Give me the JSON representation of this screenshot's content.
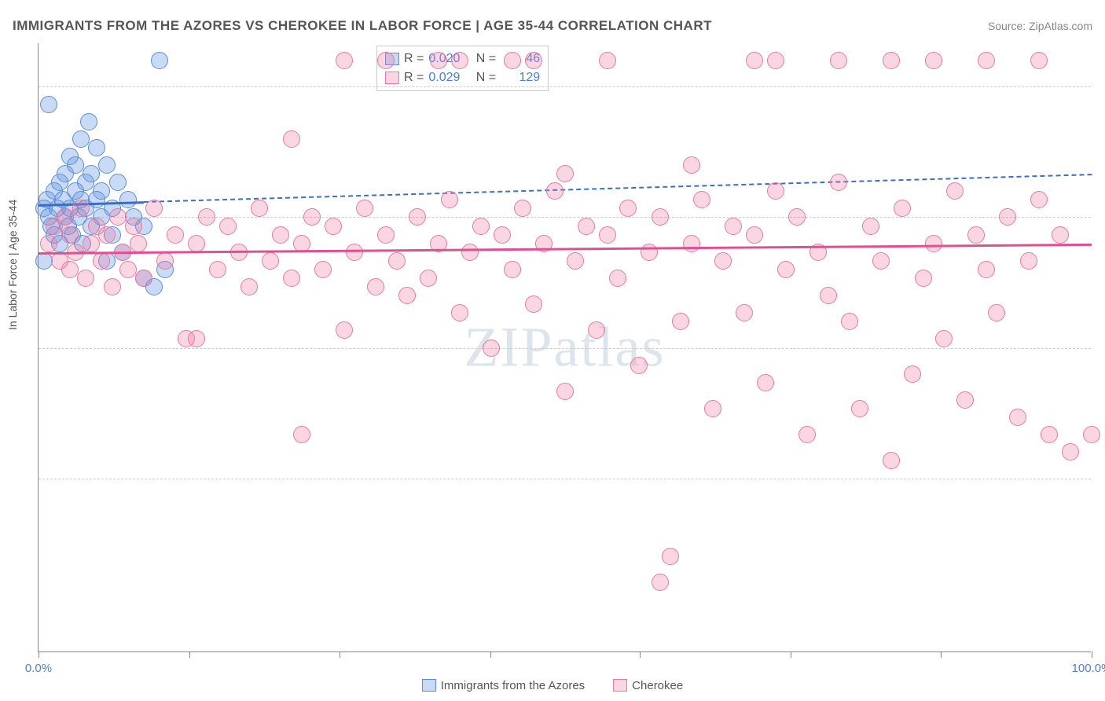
{
  "title": "IMMIGRANTS FROM THE AZORES VS CHEROKEE IN LABOR FORCE | AGE 35-44 CORRELATION CHART",
  "source": "Source: ZipAtlas.com",
  "ylabel": "In Labor Force | Age 35-44",
  "watermark": "ZIPatlas",
  "chart": {
    "type": "scatter",
    "xlim": [
      0,
      100
    ],
    "ylim": [
      35,
      105
    ],
    "yticks": [
      55.0,
      70.0,
      85.0,
      100.0
    ],
    "xticks_minor": [
      0,
      14.3,
      28.6,
      42.9,
      57.1,
      71.4,
      85.7,
      100
    ],
    "xtick_labels": {
      "0": "0.0%",
      "100": "100.0%"
    },
    "grid_color": "#cccccc",
    "background_color": "#ffffff",
    "axis_color": "#888888",
    "tick_label_color": "#4a7fd6",
    "point_radius": 11,
    "series": [
      {
        "name": "Immigrants from the Azores",
        "fill": "rgba(100,150,230,0.35)",
        "stroke": "#5b8fd6",
        "trend": {
          "y_at_x0": 86.5,
          "y_at_x100": 90.0,
          "solid_until_x": 10,
          "color": "#3b6fc6"
        },
        "R": "0.020",
        "N": "46",
        "points": [
          [
            0.5,
            86
          ],
          [
            0.8,
            87
          ],
          [
            1.0,
            85
          ],
          [
            1.2,
            84
          ],
          [
            1.5,
            88
          ],
          [
            1.5,
            83
          ],
          [
            1.8,
            86
          ],
          [
            2.0,
            89
          ],
          [
            2.0,
            82
          ],
          [
            2.3,
            87
          ],
          [
            2.5,
            90
          ],
          [
            2.5,
            85
          ],
          [
            2.8,
            84
          ],
          [
            3.0,
            92
          ],
          [
            3.0,
            86
          ],
          [
            3.2,
            83
          ],
          [
            3.5,
            88
          ],
          [
            3.5,
            91
          ],
          [
            3.8,
            85
          ],
          [
            4.0,
            87
          ],
          [
            4.0,
            94
          ],
          [
            4.2,
            82
          ],
          [
            4.5,
            89
          ],
          [
            4.5,
            86
          ],
          [
            4.8,
            96
          ],
          [
            5.0,
            84
          ],
          [
            5.0,
            90
          ],
          [
            5.5,
            87
          ],
          [
            5.5,
            93
          ],
          [
            6.0,
            85
          ],
          [
            6.0,
            88
          ],
          [
            6.5,
            80
          ],
          [
            6.5,
            91
          ],
          [
            7.0,
            86
          ],
          [
            7.0,
            83
          ],
          [
            7.5,
            89
          ],
          [
            8.0,
            81
          ],
          [
            8.5,
            87
          ],
          [
            9.0,
            85
          ],
          [
            10.0,
            78
          ],
          [
            10.0,
            84
          ],
          [
            11.0,
            77
          ],
          [
            11.5,
            103
          ],
          [
            12.0,
            79
          ],
          [
            1.0,
            98
          ],
          [
            0.5,
            80
          ]
        ]
      },
      {
        "name": "Cherokee",
        "fill": "rgba(240,120,160,0.30)",
        "stroke": "#e67aa0",
        "trend": {
          "y_at_x0": 81.0,
          "y_at_x100": 82.0,
          "solid_until_x": 100,
          "color": "#e05090"
        },
        "R": "0.029",
        "N": "129",
        "points": [
          [
            1,
            82
          ],
          [
            1.5,
            84
          ],
          [
            2,
            80
          ],
          [
            2.5,
            85
          ],
          [
            3,
            79
          ],
          [
            3,
            83
          ],
          [
            3.5,
            81
          ],
          [
            4,
            86
          ],
          [
            4.5,
            78
          ],
          [
            5,
            82
          ],
          [
            5.5,
            84
          ],
          [
            6,
            80
          ],
          [
            6.5,
            83
          ],
          [
            7,
            77
          ],
          [
            7.5,
            85
          ],
          [
            8,
            81
          ],
          [
            8.5,
            79
          ],
          [
            9,
            84
          ],
          [
            9.5,
            82
          ],
          [
            10,
            78
          ],
          [
            11,
            86
          ],
          [
            12,
            80
          ],
          [
            13,
            83
          ],
          [
            14,
            71
          ],
          [
            15,
            82
          ],
          [
            16,
            85
          ],
          [
            17,
            79
          ],
          [
            18,
            84
          ],
          [
            19,
            81
          ],
          [
            20,
            77
          ],
          [
            21,
            86
          ],
          [
            22,
            80
          ],
          [
            23,
            83
          ],
          [
            24,
            78
          ],
          [
            24,
            94
          ],
          [
            25,
            82
          ],
          [
            26,
            85
          ],
          [
            27,
            79
          ],
          [
            28,
            84
          ],
          [
            29,
            72
          ],
          [
            30,
            81
          ],
          [
            31,
            86
          ],
          [
            32,
            77
          ],
          [
            33,
            83
          ],
          [
            34,
            80
          ],
          [
            35,
            76
          ],
          [
            36,
            85
          ],
          [
            37,
            78
          ],
          [
            38,
            82
          ],
          [
            39,
            87
          ],
          [
            40,
            74
          ],
          [
            41,
            81
          ],
          [
            42,
            84
          ],
          [
            43,
            70
          ],
          [
            44,
            83
          ],
          [
            45,
            79
          ],
          [
            46,
            86
          ],
          [
            47,
            75
          ],
          [
            48,
            82
          ],
          [
            49,
            88
          ],
          [
            50,
            65
          ],
          [
            51,
            80
          ],
          [
            52,
            84
          ],
          [
            53,
            72
          ],
          [
            54,
            83
          ],
          [
            54,
            103
          ],
          [
            55,
            78
          ],
          [
            56,
            86
          ],
          [
            57,
            68
          ],
          [
            58,
            81
          ],
          [
            59,
            85
          ],
          [
            60,
            46
          ],
          [
            61,
            73
          ],
          [
            62,
            82
          ],
          [
            63,
            87
          ],
          [
            64,
            63
          ],
          [
            65,
            80
          ],
          [
            66,
            84
          ],
          [
            67,
            74
          ],
          [
            68,
            83
          ],
          [
            69,
            66
          ],
          [
            70,
            88
          ],
          [
            71,
            79
          ],
          [
            72,
            85
          ],
          [
            73,
            60
          ],
          [
            74,
            81
          ],
          [
            75,
            76
          ],
          [
            76,
            89
          ],
          [
            76,
            103
          ],
          [
            77,
            73
          ],
          [
            78,
            63
          ],
          [
            79,
            84
          ],
          [
            80,
            80
          ],
          [
            81,
            57
          ],
          [
            81,
            103
          ],
          [
            82,
            86
          ],
          [
            83,
            67
          ],
          [
            84,
            78
          ],
          [
            85,
            82
          ],
          [
            85,
            103
          ],
          [
            86,
            71
          ],
          [
            87,
            88
          ],
          [
            88,
            64
          ],
          [
            89,
            83
          ],
          [
            90,
            79
          ],
          [
            90,
            103
          ],
          [
            91,
            74
          ],
          [
            92,
            85
          ],
          [
            93,
            62
          ],
          [
            94,
            80
          ],
          [
            95,
            87
          ],
          [
            95,
            103
          ],
          [
            96,
            60
          ],
          [
            97,
            83
          ],
          [
            98,
            58
          ],
          [
            59,
            43
          ],
          [
            38,
            103
          ],
          [
            45,
            103
          ],
          [
            50,
            90
          ],
          [
            62,
            91
          ],
          [
            15,
            71
          ],
          [
            25,
            60
          ],
          [
            70,
            103
          ],
          [
            100,
            60
          ],
          [
            68,
            103
          ],
          [
            33,
            103
          ],
          [
            29,
            103
          ],
          [
            40,
            103
          ],
          [
            47,
            103
          ]
        ]
      }
    ]
  },
  "bottom_legend": [
    {
      "label": "Immigrants from the Azores",
      "fill": "rgba(100,150,230,0.35)",
      "stroke": "#5b8fd6"
    },
    {
      "label": "Cherokee",
      "fill": "rgba(240,120,160,0.30)",
      "stroke": "#e67aa0"
    }
  ]
}
